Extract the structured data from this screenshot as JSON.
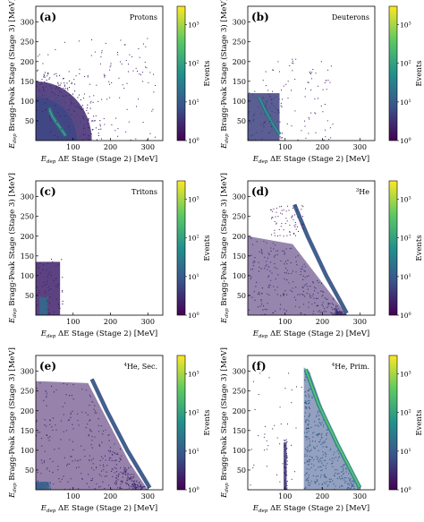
{
  "figure": {
    "colorbar_label": "Events",
    "xlabel_main": "ΔE Stage (Stage 2) [MeV]",
    "xlabel_prefix": "E",
    "xlabel_sub": "dep",
    "ylabel_main": "Bragg-Peak Stage (Stage 3) [MeV]",
    "ylabel_prefix": "E",
    "ylabel_sub": "dep",
    "colormap": [
      "#440154",
      "#3b528b",
      "#21918c",
      "#5ec962",
      "#fde725"
    ]
  },
  "chart_data": [
    {
      "type": "heatmap",
      "panel": "(a)",
      "title": "Protons",
      "xlim": [
        0,
        340
      ],
      "ylim": [
        0,
        340
      ],
      "xticks": [
        100,
        200,
        300
      ],
      "yticks": [
        50,
        100,
        150,
        200,
        250,
        300
      ],
      "colorbar": {
        "scale": "log",
        "range": [
          1,
          3000
        ],
        "ticks": [
          "10^0",
          "10^1",
          "10^2",
          "10^3"
        ]
      },
      "features": [
        {
          "kind": "quarter-disc",
          "x0": 0,
          "y0": 0,
          "r": 150,
          "level": 0.12
        },
        {
          "kind": "quarter-disc",
          "x0": 0,
          "y0": 0,
          "r": 110,
          "level": 0.22
        },
        {
          "kind": "curve",
          "points": [
            [
              35,
              82
            ],
            [
              45,
              60
            ],
            [
              60,
              40
            ],
            [
              80,
              12
            ]
          ],
          "level": 0.6
        },
        {
          "kind": "scatter",
          "xrange": [
            0,
            320
          ],
          "yrange": [
            0,
            260
          ],
          "count": 150
        }
      ]
    },
    {
      "type": "heatmap",
      "panel": "(b)",
      "title": "Deuterons",
      "xlim": [
        0,
        340
      ],
      "ylim": [
        0,
        340
      ],
      "xticks": [
        100,
        200,
        300
      ],
      "yticks": [
        50,
        100,
        150,
        200,
        250,
        300
      ],
      "colorbar": {
        "scale": "log",
        "range": [
          1,
          3000
        ],
        "ticks": [
          "10^0",
          "10^1",
          "10^2",
          "10^3"
        ]
      },
      "features": [
        {
          "kind": "rect",
          "x": [
            0,
            85
          ],
          "y": [
            0,
            120
          ],
          "level": 0.2
        },
        {
          "kind": "curve",
          "points": [
            [
              30,
              110
            ],
            [
              45,
              80
            ],
            [
              65,
              45
            ],
            [
              85,
              15
            ]
          ],
          "level": 0.55
        },
        {
          "kind": "scatter",
          "xrange": [
            40,
            230
          ],
          "yrange": [
            0,
            210
          ],
          "count": 90
        }
      ]
    },
    {
      "type": "heatmap",
      "panel": "(c)",
      "title": "Tritons",
      "xlim": [
        0,
        340
      ],
      "ylim": [
        0,
        340
      ],
      "xticks": [
        100,
        200,
        300
      ],
      "yticks": [
        50,
        100,
        150,
        200,
        250,
        300
      ],
      "colorbar": {
        "scale": "log",
        "range": [
          1,
          3000
        ],
        "ticks": [
          "10^0",
          "10^1",
          "10^2",
          "10^3"
        ]
      },
      "features": [
        {
          "kind": "rect",
          "x": [
            0,
            65
          ],
          "y": [
            0,
            135
          ],
          "level": 0.1
        },
        {
          "kind": "rect",
          "x": [
            10,
            30
          ],
          "y": [
            0,
            45
          ],
          "level": 0.35
        }
      ]
    },
    {
      "type": "heatmap",
      "panel": "(d)",
      "title": "3He",
      "title_sup": "3",
      "title_main": "He",
      "xlim": [
        0,
        340
      ],
      "ylim": [
        0,
        340
      ],
      "xticks": [
        100,
        200,
        300
      ],
      "yticks": [
        50,
        100,
        150,
        200,
        250,
        300
      ],
      "colorbar": {
        "scale": "log",
        "range": [
          1,
          3000
        ],
        "ticks": [
          "10^0",
          "10^1",
          "10^2",
          "10^3"
        ]
      },
      "features": [
        {
          "kind": "wedge",
          "top": [
            [
              0,
              200
            ],
            [
              120,
              180
            ],
            [
              250,
              20
            ],
            [
              265,
              0
            ]
          ],
          "level": 0.1
        },
        {
          "kind": "curve",
          "points": [
            [
              125,
              280
            ],
            [
              160,
              200
            ],
            [
              210,
              100
            ],
            [
              265,
              5
            ]
          ],
          "level": 0.35
        },
        {
          "kind": "scatter",
          "xrange": [
            60,
            150
          ],
          "yrange": [
            200,
            280
          ],
          "count": 70
        }
      ]
    },
    {
      "type": "heatmap",
      "panel": "(e)",
      "title": "4He, Sec.",
      "title_sup": "4",
      "title_main": "He, Sec.",
      "xlim": [
        0,
        340
      ],
      "ylim": [
        0,
        340
      ],
      "xticks": [
        100,
        200,
        300
      ],
      "yticks": [
        50,
        100,
        150,
        200,
        250,
        300
      ],
      "colorbar": {
        "scale": "log",
        "range": [
          1,
          3000
        ],
        "ticks": [
          "10^0",
          "10^1",
          "10^2",
          "10^3"
        ]
      },
      "features": [
        {
          "kind": "wedge",
          "top": [
            [
              0,
              275
            ],
            [
              140,
              270
            ],
            [
              250,
              70
            ],
            [
              300,
              0
            ]
          ],
          "level": 0.08
        },
        {
          "kind": "curve",
          "points": [
            [
              150,
              280
            ],
            [
              190,
              200
            ],
            [
              245,
              100
            ],
            [
              305,
              5
            ]
          ],
          "level": 0.35
        },
        {
          "kind": "rect",
          "x": [
            0,
            35
          ],
          "y": [
            0,
            20
          ],
          "level": 0.3
        }
      ]
    },
    {
      "type": "heatmap",
      "panel": "(f)",
      "title": "4He, Prim.",
      "title_sup": "4",
      "title_main": "He, Prim.",
      "xlim": [
        0,
        340
      ],
      "ylim": [
        0,
        340
      ],
      "xticks": [
        100,
        200,
        300
      ],
      "yticks": [
        50,
        100,
        150,
        200,
        250,
        300
      ],
      "colorbar": {
        "scale": "log",
        "range": [
          1,
          3000
        ],
        "ticks": [
          "10^0",
          "10^1",
          "10^2",
          "10^3"
        ]
      },
      "features": [
        {
          "kind": "wedge",
          "top": [
            [
              150,
              310
            ],
            [
              165,
              300
            ],
            [
              210,
              180
            ],
            [
              300,
              0
            ]
          ],
          "xstart": 150,
          "level": 0.25
        },
        {
          "kind": "curve",
          "points": [
            [
              155,
              305
            ],
            [
              190,
              215
            ],
            [
              240,
              115
            ],
            [
              300,
              5
            ]
          ],
          "level": 0.75
        },
        {
          "kind": "rect",
          "x": [
            96,
            104
          ],
          "y": [
            0,
            120
          ],
          "level": 0.15
        },
        {
          "kind": "scatter",
          "xrange": [
            0,
            150
          ],
          "yrange": [
            0,
            300
          ],
          "count": 40
        }
      ]
    }
  ]
}
